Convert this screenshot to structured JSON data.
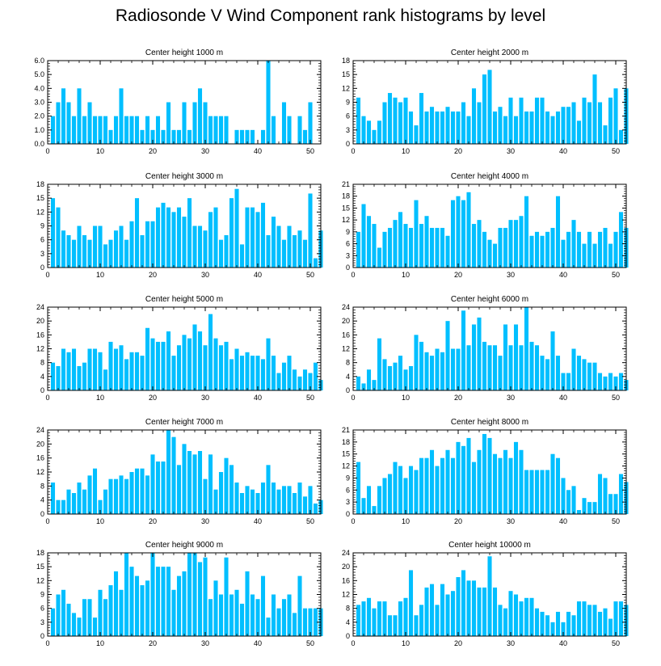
{
  "page": {
    "title": "Radiosonde V Wind Component rank histograms by level"
  },
  "colors": {
    "bar": "#00BFFF",
    "axis": "#000000"
  },
  "chart_data": [
    {
      "type": "bar",
      "title": "Center height 1000 m",
      "xlim": [
        0,
        52
      ],
      "ylim": [
        0,
        6
      ],
      "yticks": [
        0,
        1,
        2,
        3,
        4,
        5,
        6
      ],
      "ytick_labels": [
        "0.0",
        "1.0",
        "2.0",
        "3.0",
        "4.0",
        "5.0",
        "6.0"
      ],
      "xticks": [
        0,
        10,
        20,
        30,
        40,
        50
      ],
      "values": [
        2,
        3,
        4,
        3,
        2,
        4,
        2,
        3,
        2,
        2,
        2,
        1,
        2,
        4,
        2,
        2,
        2,
        1,
        2,
        1,
        2,
        1,
        3,
        1,
        1,
        3,
        1,
        3,
        4,
        3,
        2,
        2,
        2,
        2,
        0,
        1,
        1,
        1,
        1,
        0,
        1,
        6,
        2,
        0,
        3,
        2,
        0,
        2,
        1,
        3
      ]
    },
    {
      "type": "bar",
      "title": "Center height 2000 m",
      "xlim": [
        0,
        52
      ],
      "ylim": [
        0,
        18
      ],
      "yticks": [
        0,
        3,
        6,
        9,
        12,
        15,
        18
      ],
      "ytick_labels": [
        "0",
        "3",
        "6",
        "9",
        "12",
        "15",
        "18"
      ],
      "xticks": [
        0,
        10,
        20,
        30,
        40,
        50
      ],
      "values": [
        10,
        6,
        5,
        3,
        5,
        9,
        11,
        10,
        9,
        10,
        7,
        4,
        11,
        7,
        8,
        7,
        7,
        8,
        7,
        7,
        9,
        6,
        12,
        9,
        15,
        16,
        7,
        8,
        6,
        10,
        6,
        10,
        7,
        7,
        10,
        10,
        7,
        6,
        7,
        8,
        8,
        9,
        5,
        10,
        9,
        15,
        9,
        4,
        10,
        12,
        3,
        12
      ]
    },
    {
      "type": "bar",
      "title": "Center height 3000 m",
      "xlim": [
        0,
        52
      ],
      "ylim": [
        0,
        18
      ],
      "yticks": [
        0,
        3,
        6,
        9,
        12,
        15,
        18
      ],
      "ytick_labels": [
        "0",
        "3",
        "6",
        "9",
        "12",
        "15",
        "18"
      ],
      "xticks": [
        0,
        10,
        20,
        30,
        40,
        50
      ],
      "values": [
        15,
        13,
        8,
        7,
        6,
        9,
        7,
        6,
        9,
        9,
        5,
        6,
        8,
        9,
        6,
        10,
        15,
        7,
        10,
        10,
        13,
        14,
        13,
        12,
        13,
        11,
        15,
        9,
        9,
        8,
        12,
        13,
        6,
        7,
        15,
        17,
        5,
        13,
        13,
        12,
        14,
        7,
        11,
        9,
        6,
        9,
        7,
        8,
        6,
        16,
        2,
        8
      ]
    },
    {
      "type": "bar",
      "title": "Center height 4000 m",
      "xlim": [
        0,
        52
      ],
      "ylim": [
        0,
        21
      ],
      "yticks": [
        0,
        3,
        6,
        9,
        12,
        15,
        18,
        21
      ],
      "ytick_labels": [
        "0",
        "3",
        "6",
        "9",
        "12",
        "15",
        "18",
        "21"
      ],
      "xticks": [
        0,
        10,
        20,
        30,
        40,
        50
      ],
      "values": [
        9,
        16,
        13,
        11,
        5,
        9,
        10,
        12,
        14,
        11,
        10,
        17,
        11,
        13,
        10,
        10,
        10,
        8,
        17,
        18,
        17,
        19,
        11,
        12,
        9,
        7,
        6,
        10,
        10,
        12,
        12,
        13,
        18,
        8,
        9,
        8,
        9,
        10,
        18,
        7,
        9,
        12,
        9,
        6,
        9,
        6,
        9,
        10,
        6,
        9,
        14,
        10
      ]
    },
    {
      "type": "bar",
      "title": "Center height 5000 m",
      "xlim": [
        0,
        52
      ],
      "ylim": [
        0,
        24
      ],
      "yticks": [
        0,
        4,
        8,
        12,
        16,
        20,
        24
      ],
      "ytick_labels": [
        "0",
        "4",
        "8",
        "12",
        "16",
        "20",
        "24"
      ],
      "xticks": [
        0,
        10,
        20,
        30,
        40,
        50
      ],
      "values": [
        8,
        7,
        12,
        11,
        12,
        7,
        8,
        12,
        12,
        11,
        6,
        14,
        12,
        13,
        9,
        11,
        11,
        10,
        18,
        15,
        14,
        14,
        17,
        10,
        13,
        16,
        15,
        19,
        17,
        13,
        22,
        15,
        13,
        14,
        9,
        12,
        10,
        11,
        10,
        10,
        9,
        15,
        10,
        5,
        8,
        10,
        6,
        4,
        6,
        5,
        8,
        3
      ]
    },
    {
      "type": "bar",
      "title": "Center height 6000 m",
      "xlim": [
        0,
        52
      ],
      "ylim": [
        0,
        24
      ],
      "yticks": [
        0,
        4,
        8,
        12,
        16,
        20,
        24
      ],
      "ytick_labels": [
        "0",
        "4",
        "8",
        "12",
        "16",
        "20",
        "24"
      ],
      "xticks": [
        0,
        10,
        20,
        30,
        40,
        50
      ],
      "values": [
        4,
        2,
        6,
        3,
        15,
        9,
        7,
        8,
        10,
        6,
        7,
        16,
        14,
        11,
        10,
        12,
        11,
        20,
        12,
        12,
        23,
        13,
        19,
        21,
        14,
        13,
        13,
        10,
        19,
        13,
        19,
        13,
        24,
        14,
        13,
        10,
        9,
        17,
        10,
        5,
        5,
        12,
        10,
        9,
        8,
        8,
        5,
        4,
        5,
        4,
        5,
        3
      ]
    },
    {
      "type": "bar",
      "title": "Center height 7000 m",
      "xlim": [
        0,
        52
      ],
      "ylim": [
        0,
        24
      ],
      "yticks": [
        0,
        4,
        8,
        12,
        16,
        20,
        24
      ],
      "ytick_labels": [
        "0",
        "4",
        "8",
        "12",
        "16",
        "20",
        "24"
      ],
      "xticks": [
        0,
        10,
        20,
        30,
        40,
        50
      ],
      "values": [
        9,
        4,
        4,
        7,
        6,
        9,
        7,
        11,
        13,
        4,
        7,
        10,
        10,
        11,
        10,
        12,
        13,
        13,
        11,
        17,
        15,
        15,
        24,
        22,
        14,
        20,
        18,
        17,
        18,
        10,
        17,
        7,
        12,
        16,
        14,
        9,
        6,
        8,
        7,
        6,
        9,
        14,
        9,
        7,
        8,
        8,
        6,
        9,
        5,
        8,
        3,
        4
      ]
    },
    {
      "type": "bar",
      "title": "Center height 8000 m",
      "xlim": [
        0,
        52
      ],
      "ylim": [
        0,
        21
      ],
      "yticks": [
        0,
        3,
        6,
        9,
        12,
        15,
        18,
        21
      ],
      "ytick_labels": [
        "0",
        "3",
        "6",
        "9",
        "12",
        "15",
        "18",
        "21"
      ],
      "xticks": [
        0,
        10,
        20,
        30,
        40,
        50
      ],
      "values": [
        13,
        4,
        7,
        2,
        7,
        9,
        10,
        13,
        12,
        9,
        12,
        11,
        14,
        14,
        16,
        12,
        14,
        16,
        14,
        18,
        17,
        19,
        13,
        16,
        20,
        19,
        15,
        14,
        16,
        14,
        18,
        16,
        11,
        11,
        11,
        11,
        11,
        15,
        14,
        9,
        6,
        7,
        1,
        4,
        3,
        3,
        10,
        9,
        5,
        5,
        10,
        8
      ]
    },
    {
      "type": "bar",
      "title": "Center height 9000 m",
      "xlim": [
        0,
        52
      ],
      "ylim": [
        0,
        18
      ],
      "yticks": [
        0,
        3,
        6,
        9,
        12,
        15,
        18
      ],
      "ytick_labels": [
        "0",
        "3",
        "6",
        "9",
        "12",
        "15",
        "18"
      ],
      "xticks": [
        0,
        10,
        20,
        30,
        40,
        50
      ],
      "values": [
        6,
        9,
        10,
        7,
        5,
        4,
        8,
        8,
        4,
        10,
        8,
        11,
        14,
        10,
        18,
        15,
        13,
        11,
        12,
        18,
        15,
        15,
        15,
        10,
        13,
        14,
        18,
        18,
        16,
        17,
        8,
        12,
        9,
        17,
        9,
        10,
        7,
        14,
        9,
        8,
        13,
        4,
        9,
        6,
        8,
        9,
        5,
        13,
        6,
        6,
        6,
        6
      ]
    },
    {
      "type": "bar",
      "title": "Center height 10000 m",
      "xlim": [
        0,
        52
      ],
      "ylim": [
        0,
        24
      ],
      "yticks": [
        0,
        4,
        8,
        12,
        16,
        20,
        24
      ],
      "ytick_labels": [
        "0",
        "4",
        "8",
        "12",
        "16",
        "20",
        "24"
      ],
      "xticks": [
        0,
        10,
        20,
        30,
        40,
        50
      ],
      "values": [
        9,
        10,
        11,
        8,
        10,
        10,
        6,
        6,
        10,
        11,
        19,
        6,
        9,
        14,
        15,
        9,
        15,
        12,
        13,
        17,
        19,
        16,
        16,
        14,
        14,
        23,
        14,
        9,
        8,
        13,
        12,
        10,
        11,
        11,
        8,
        7,
        6,
        4,
        7,
        4,
        7,
        6,
        10,
        10,
        9,
        9,
        7,
        8,
        5,
        10,
        10,
        9
      ]
    }
  ]
}
